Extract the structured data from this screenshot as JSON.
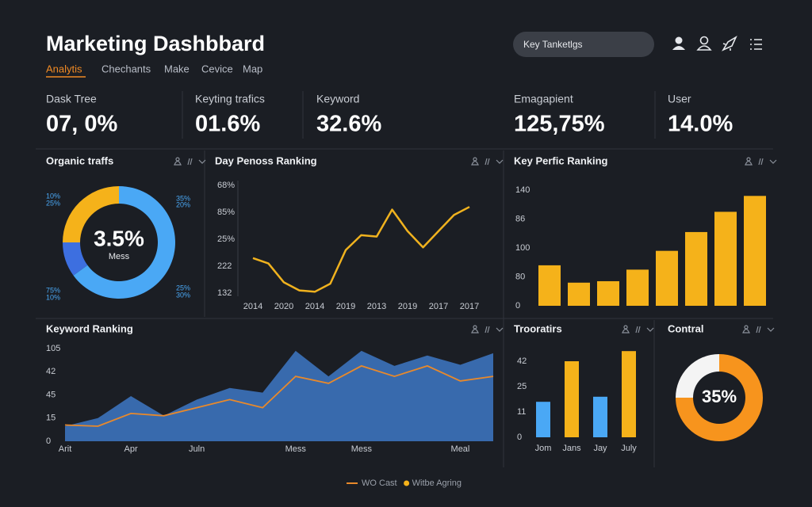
{
  "header": {
    "title": "Marketing Dashbbard",
    "tabs": [
      "Analytis",
      "Chechants",
      "Make",
      "Cevice",
      "Map"
    ],
    "search": "Key Tanketlgs"
  },
  "kpis": [
    {
      "label": "Dask Tree",
      "value": "07, 0%"
    },
    {
      "label": "Keyting trafics",
      "value": "01.6%"
    },
    {
      "label": "Keyword",
      "value": "32.6%"
    },
    {
      "label": "Emagapient",
      "value": "125,75%"
    },
    {
      "label": "User",
      "value": "14.0%"
    }
  ],
  "chart_data": [
    {
      "type": "donut",
      "title": "Organic traffs",
      "center_label": "3.5%",
      "center_sublabel": "Mess",
      "values": [
        65,
        10,
        25
      ],
      "colors": [
        "#4aa8f5",
        "#3d6fe0",
        "#f5b21a"
      ],
      "annotations": [
        "10%",
        "25%",
        "35%",
        "20%",
        "75%",
        "10%",
        "25%",
        "30%"
      ]
    },
    {
      "type": "line",
      "title": "Day Penoss Ranking",
      "categories": [
        "2014",
        null,
        "2020",
        null,
        "2014",
        null,
        "2019",
        null,
        "2013",
        null,
        "2019",
        null,
        "2017",
        null,
        "2017"
      ],
      "values": [
        1.3,
        1.1,
        0.4,
        0.1,
        0.05,
        0.35,
        1.6,
        2.15,
        2.1,
        3.1,
        2.3,
        1.7,
        2.3,
        2.9,
        3.2
      ],
      "color": "#f0b21e",
      "ylim": [
        0,
        4
      ],
      "yticks": [
        {
          "value": 4,
          "label": "68%"
        },
        {
          "value": 3,
          "label": "85%"
        },
        {
          "value": 2,
          "label": "25%"
        },
        {
          "value": 1,
          "label": "222"
        },
        {
          "value": 0,
          "label": "132"
        }
      ]
    },
    {
      "type": "bar",
      "title": "Key Perfic Ranking",
      "categories": [
        null,
        null,
        null,
        null,
        null,
        null,
        null,
        null
      ],
      "values": [
        1.4,
        0.8,
        0.85,
        1.25,
        1.9,
        2.55,
        3.25,
        3.8
      ],
      "color": "#f5b21a",
      "ylim": [
        0,
        4
      ],
      "yticks": [
        {
          "value": 4,
          "label": "140"
        },
        {
          "value": 3,
          "label": "86"
        },
        {
          "value": 2,
          "label": "100"
        },
        {
          "value": 1,
          "label": "80"
        },
        {
          "value": 0,
          "label": "0"
        }
      ]
    },
    {
      "type": "area",
      "title": "Keyword Ranking",
      "categories": [
        "Arit",
        null,
        "Apr",
        null,
        "Juln",
        null,
        null,
        "Mess",
        null,
        "Mess",
        null,
        null,
        "Meal",
        null
      ],
      "series": [
        {
          "name": "Witbe Agring",
          "color": "#3a6fb5",
          "legend_color": "#f5b21a",
          "fill": true,
          "values": [
            0.65,
            1.0,
            1.95,
            1.1,
            1.8,
            2.3,
            2.1,
            3.9,
            2.8,
            3.9,
            3.25,
            3.7,
            3.3,
            3.8
          ]
        },
        {
          "name": "WO Cast",
          "color": "#e8892b",
          "legend_color": "#e8892b",
          "fill": false,
          "values": [
            0.7,
            0.65,
            1.2,
            1.1,
            1.45,
            1.8,
            1.45,
            2.8,
            2.5,
            3.25,
            2.8,
            3.25,
            2.6,
            2.8
          ]
        }
      ],
      "ylim": [
        0,
        4
      ],
      "legend": "bottom",
      "yticks": [
        {
          "value": 4,
          "label": "105"
        },
        {
          "value": 3,
          "label": "42"
        },
        {
          "value": 2,
          "label": "45"
        },
        {
          "value": 1,
          "label": "15"
        },
        {
          "value": 0,
          "label": "0"
        }
      ]
    },
    {
      "type": "bar",
      "title": "Trooratirs",
      "categories": [
        "Jom",
        "Jans",
        "Jay",
        "July"
      ],
      "values": [
        1.4,
        3.0,
        1.6,
        3.4
      ],
      "colors": [
        "#4aa8f5",
        "#f5b21a",
        "#4aa8f5",
        "#f5b21a"
      ],
      "ylim": [
        0,
        3
      ],
      "yticks": [
        {
          "value": 3,
          "label": "42"
        },
        {
          "value": 2,
          "label": "25"
        },
        {
          "value": 1,
          "label": "11"
        },
        {
          "value": 0,
          "label": "0"
        }
      ]
    },
    {
      "type": "donut",
      "title": "Contral",
      "center_label": "35%",
      "values": [
        75,
        25
      ],
      "colors": [
        "#f7941d",
        "#f4f4f4"
      ]
    }
  ]
}
